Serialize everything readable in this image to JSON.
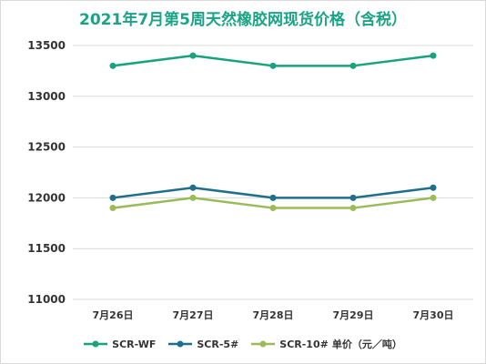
{
  "chart_data": {
    "type": "line",
    "title": "2021年7月第5周天然橡胶网现货价格（含税）",
    "unit_label": "单价（元／吨）",
    "categories": [
      "7月26日",
      "7月27日",
      "7月28日",
      "7月29日",
      "7月30日"
    ],
    "series": [
      {
        "name": "SCR-WF",
        "color": "#17a37e",
        "values": [
          13300,
          13400,
          13300,
          13300,
          13400
        ]
      },
      {
        "name": "SCR-5#",
        "color": "#1e6f8c",
        "values": [
          12000,
          12100,
          12000,
          12000,
          12100
        ]
      },
      {
        "name": "SCR-10#",
        "color": "#9bbb59",
        "values": [
          11900,
          12000,
          11900,
          11900,
          12000
        ]
      }
    ],
    "ylim": [
      11000,
      13500
    ],
    "yticks": [
      "11000",
      "11500",
      "12000",
      "12500",
      "13000",
      "13500"
    ],
    "grid": true,
    "legend_position": "bottom"
  }
}
